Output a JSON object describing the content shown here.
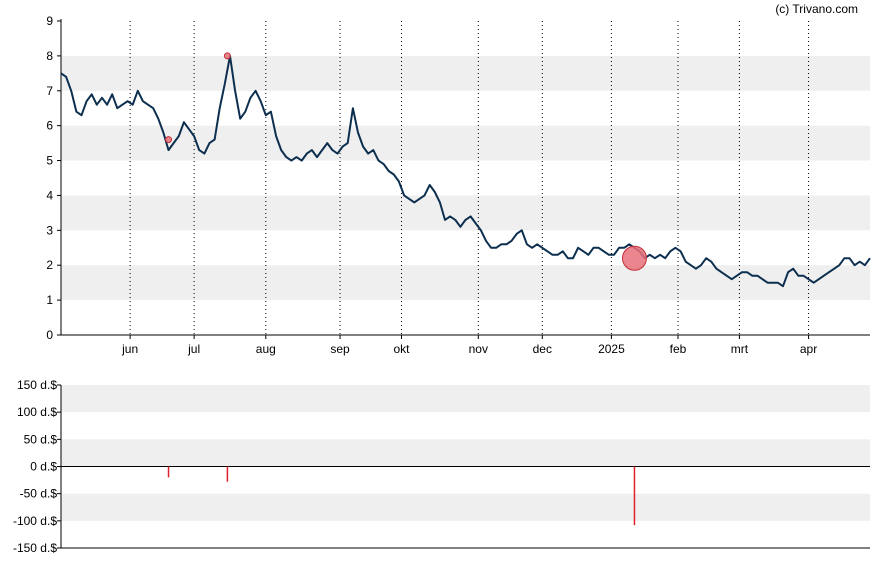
{
  "credit": "(c) Trivano.com",
  "colors": {
    "price_line": "#0d2f4f",
    "band": "#efefef",
    "marker": "#e8707a",
    "marker_stroke": "#c0303a",
    "volume_bar": "#e0202a",
    "axis": "#000000"
  },
  "chart_data": [
    {
      "type": "line",
      "title": "",
      "ylim": [
        0,
        9
      ],
      "yticks": [
        "0",
        "1",
        "2",
        "3",
        "4",
        "5",
        "6",
        "7",
        "8",
        "9"
      ],
      "xlim": [
        0,
        316
      ],
      "month_ticks": [
        {
          "label": "jun",
          "x": 27
        },
        {
          "label": "jul",
          "x": 52
        },
        {
          "label": "aug",
          "x": 80
        },
        {
          "label": "sep",
          "x": 109
        },
        {
          "label": "okt",
          "x": 133
        },
        {
          "label": "nov",
          "x": 163
        },
        {
          "label": "dec",
          "x": 188
        },
        {
          "label": "2025",
          "x": 215
        },
        {
          "label": "feb",
          "x": 241
        },
        {
          "label": "mrt",
          "x": 265
        },
        {
          "label": "apr",
          "x": 292
        }
      ],
      "grid": "horizontal bands + dotted vertical month lines",
      "series": [
        {
          "x": [
            0,
            2,
            4,
            6,
            8,
            10,
            12,
            14,
            16,
            18,
            20,
            22,
            24,
            26,
            28,
            30,
            32,
            34,
            36,
            38,
            40,
            42,
            44,
            46,
            48,
            50,
            52,
            54,
            56,
            58,
            60,
            62,
            64,
            66,
            68,
            70,
            72,
            74,
            76,
            78,
            80,
            82,
            84,
            86,
            88,
            90,
            92,
            94,
            96,
            98,
            100,
            102,
            104,
            106,
            108,
            110,
            112,
            114,
            116,
            118,
            120,
            122,
            124,
            126,
            128,
            130,
            132,
            134,
            136,
            138,
            140,
            142,
            144,
            146,
            148,
            150,
            152,
            154,
            156,
            158,
            160,
            162,
            164,
            166,
            168,
            170,
            172,
            174,
            176,
            178,
            180,
            182,
            184,
            186,
            188,
            190,
            192,
            194,
            196,
            198,
            200,
            202,
            204,
            206,
            208,
            210,
            212,
            214,
            216,
            218,
            220,
            222,
            224,
            226,
            228,
            230,
            232,
            234,
            236,
            238,
            240,
            242,
            244,
            246,
            248,
            250,
            252,
            254,
            256,
            258,
            260,
            262,
            264,
            266,
            268,
            270,
            272,
            274,
            276,
            278,
            280,
            282,
            284,
            286,
            288,
            290,
            292,
            294,
            296,
            298,
            300,
            302,
            304,
            306,
            308,
            310,
            312,
            314,
            316
          ],
          "y": [
            7.5,
            7.4,
            7.0,
            6.4,
            6.3,
            6.7,
            6.9,
            6.6,
            6.8,
            6.6,
            6.9,
            6.5,
            6.6,
            6.7,
            6.6,
            7.0,
            6.7,
            6.6,
            6.5,
            6.2,
            5.8,
            5.3,
            5.5,
            5.7,
            6.1,
            5.9,
            5.7,
            5.3,
            5.2,
            5.5,
            5.6,
            6.5,
            7.2,
            8.0,
            7.0,
            6.2,
            6.4,
            6.8,
            7.0,
            6.7,
            6.3,
            6.4,
            5.7,
            5.3,
            5.1,
            5.0,
            5.1,
            5.0,
            5.2,
            5.3,
            5.1,
            5.3,
            5.5,
            5.3,
            5.2,
            5.4,
            5.5,
            6.5,
            5.8,
            5.4,
            5.2,
            5.3,
            5.0,
            4.9,
            4.7,
            4.6,
            4.4,
            4.0,
            3.9,
            3.8,
            3.9,
            4.0,
            4.3,
            4.1,
            3.8,
            3.3,
            3.4,
            3.3,
            3.1,
            3.3,
            3.4,
            3.2,
            3.0,
            2.7,
            2.5,
            2.5,
            2.6,
            2.6,
            2.7,
            2.9,
            3.0,
            2.6,
            2.5,
            2.6,
            2.5,
            2.4,
            2.3,
            2.3,
            2.4,
            2.2,
            2.2,
            2.5,
            2.4,
            2.3,
            2.5,
            2.5,
            2.4,
            2.3,
            2.3,
            2.5,
            2.5,
            2.6,
            2.5,
            2.4,
            2.2,
            2.3,
            2.2,
            2.3,
            2.2,
            2.4,
            2.5,
            2.4,
            2.1,
            2.0,
            1.9,
            2.0,
            2.2,
            2.1,
            1.9,
            1.8,
            1.7,
            1.6,
            1.7,
            1.8,
            1.8,
            1.7,
            1.7,
            1.6,
            1.5,
            1.5,
            1.5,
            1.4,
            1.8,
            1.9,
            1.7,
            1.7,
            1.6,
            1.5,
            1.6,
            1.7,
            1.8,
            1.9,
            2.0,
            2.2,
            2.2,
            2.0,
            2.1,
            2.0,
            2.2
          ]
        }
      ],
      "markers": [
        {
          "x": 42,
          "y": 5.6,
          "size": "small"
        },
        {
          "x": 65,
          "y": 8.0,
          "size": "small"
        },
        {
          "x": 224,
          "y": 2.2,
          "size": "large"
        }
      ]
    },
    {
      "type": "bar",
      "title": "",
      "ylim": [
        -150,
        150
      ],
      "yticks": [
        "150 d.$",
        "100 d.$",
        "50 d.$",
        "0 d.$",
        "-50 d.$",
        "-100 d.$",
        "-150 d.$"
      ],
      "xlim": [
        0,
        316
      ],
      "grid": "horizontal bands",
      "bars": [
        {
          "x": 42,
          "value": -20
        },
        {
          "x": 65,
          "value": -28
        },
        {
          "x": 224,
          "value": -108
        }
      ]
    }
  ]
}
